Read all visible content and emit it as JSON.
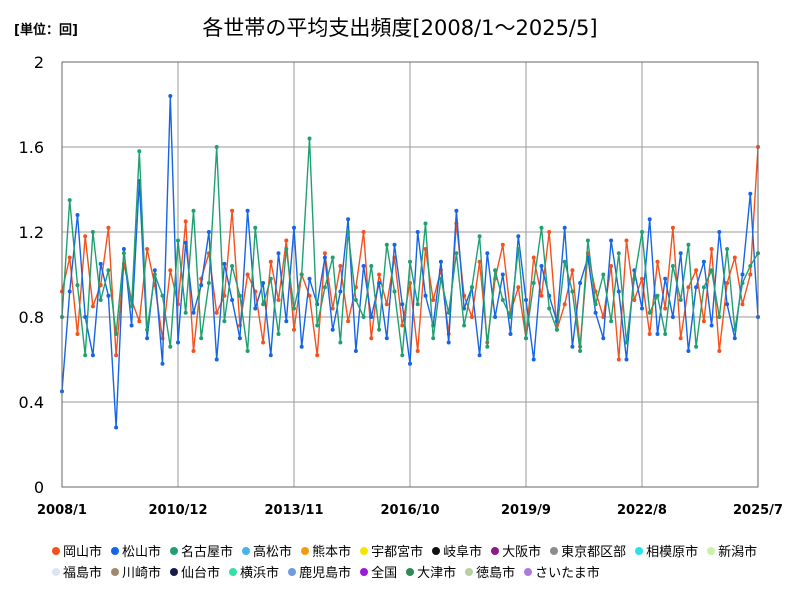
{
  "unit_label": "[単位：回]",
  "chart_data": {
    "type": "line",
    "title": "各世帯の平均支出頻度[2008/1～2025/5]",
    "xlabel": "",
    "ylabel": "",
    "ylim": [
      0,
      2
    ],
    "yticks": [
      "0",
      "0.4",
      "0.8",
      "1.2",
      "1.6",
      "2"
    ],
    "xticks": [
      "2008/1",
      "2010/12",
      "2013/11",
      "2016/10",
      "2019/9",
      "2022/8",
      "2025/7"
    ],
    "grid": true,
    "legend_position": "bottom",
    "series": [
      {
        "name": "岡山市",
        "color": "#f4511e",
        "values": [
          0.92,
          1.08,
          0.72,
          1.18,
          0.85,
          0.95,
          1.22,
          0.62,
          1.05,
          0.88,
          0.78,
          1.12,
          0.95,
          0.7,
          1.02,
          0.86,
          1.25,
          0.64,
          0.98,
          1.1,
          0.82,
          0.9,
          1.3,
          0.76,
          1.0,
          0.92,
          0.68,
          1.06,
          0.88,
          1.16,
          0.74,
          1.0,
          0.9,
          0.62,
          1.1,
          0.84,
          1.04,
          0.78,
          0.94,
          1.2,
          0.7,
          1.0,
          0.86,
          1.08,
          0.76,
          0.96,
          0.64,
          1.12,
          0.88,
          1.02,
          0.72,
          1.24,
          0.9,
          0.8,
          1.06,
          0.68,
          0.98,
          1.14,
          0.82,
          0.94,
          0.7,
          1.08,
          0.9,
          1.2,
          0.74,
          0.86,
          1.02,
          0.66,
          1.1,
          0.92,
          0.8,
          1.04,
          0.6,
          1.16,
          0.88,
          0.98,
          0.72,
          1.06,
          0.84,
          1.22,
          0.7,
          0.94,
          1.02,
          0.78,
          1.12,
          0.64,
          0.96,
          1.08,
          0.86,
          1.0,
          1.6
        ]
      },
      {
        "name": "松山市",
        "color": "#1565e6",
        "values": [
          0.45,
          0.92,
          1.28,
          0.8,
          0.62,
          1.05,
          0.9,
          0.28,
          1.12,
          0.76,
          1.44,
          0.7,
          1.02,
          0.58,
          1.84,
          0.68,
          1.15,
          0.82,
          0.95,
          1.2,
          0.6,
          1.05,
          0.88,
          0.7,
          1.3,
          0.84,
          0.96,
          0.62,
          1.1,
          0.78,
          1.22,
          0.66,
          0.98,
          0.86,
          1.08,
          0.74,
          0.92,
          1.26,
          0.64,
          1.04,
          0.8,
          0.96,
          0.7,
          1.14,
          0.86,
          0.58,
          1.2,
          0.9,
          0.76,
          1.06,
          0.68,
          1.3,
          0.84,
          0.94,
          0.62,
          1.1,
          0.8,
          1.0,
          0.72,
          1.18,
          0.88,
          0.6,
          1.04,
          0.9,
          0.78,
          1.22,
          0.66,
          0.96,
          1.08,
          0.82,
          0.7,
          1.16,
          0.92,
          0.6,
          1.02,
          0.84,
          1.26,
          0.72,
          0.98,
          0.8,
          1.1,
          0.64,
          0.94,
          1.06,
          0.76,
          1.2,
          0.86,
          0.7,
          1.0,
          1.38,
          0.8
        ]
      },
      {
        "name": "名古屋市",
        "color": "#20a070",
        "values": [
          0.8,
          1.35,
          0.95,
          0.62,
          1.2,
          0.88,
          1.02,
          0.72,
          1.1,
          0.85,
          1.58,
          0.74,
          1.0,
          0.9,
          0.66,
          1.16,
          0.82,
          1.3,
          0.7,
          0.96,
          1.6,
          0.78,
          1.04,
          0.9,
          0.64,
          1.22,
          0.86,
          0.98,
          0.72,
          1.12,
          0.84,
          1.0,
          1.64,
          0.76,
          0.94,
          1.08,
          0.68,
          1.2,
          0.88,
          0.8,
          1.04,
          0.74,
          1.14,
          0.92,
          0.62,
          1.06,
          0.86,
          1.24,
          0.7,
          0.98,
          0.82,
          1.1,
          0.76,
          0.94,
          1.18,
          0.66,
          1.02,
          0.88,
          0.8,
          1.12,
          0.7,
          0.96,
          1.22,
          0.84,
          0.74,
          1.06,
          0.92,
          0.64,
          1.16,
          0.86,
          1.0,
          0.78,
          1.1,
          0.68,
          0.98,
          1.2,
          0.82,
          0.9,
          0.72,
          1.04,
          0.88,
          1.14,
          0.66,
          0.94,
          1.02,
          0.8,
          1.12,
          0.74,
          0.96,
          1.04,
          1.1
        ]
      }
    ],
    "extra_legend": [
      {
        "name": "高松市",
        "color": "#45b4ea"
      },
      {
        "name": "熊本市",
        "color": "#f29a13"
      },
      {
        "name": "宇都宮市",
        "color": "#f5e400"
      },
      {
        "name": "岐阜市",
        "color": "#111111"
      },
      {
        "name": "大阪市",
        "color": "#8b1a8e"
      },
      {
        "name": "東京都区部",
        "color": "#8c8c8c"
      },
      {
        "name": "相模原市",
        "color": "#28e0f0"
      },
      {
        "name": "新潟市",
        "color": "#ccf0a8"
      },
      {
        "name": "福島市",
        "color": "#dde4f4"
      },
      {
        "name": "川崎市",
        "color": "#9e8a70"
      },
      {
        "name": "仙台市",
        "color": "#1a1a4e"
      },
      {
        "name": "横浜市",
        "color": "#35e0a8"
      },
      {
        "name": "鹿児島市",
        "color": "#6f9be0"
      },
      {
        "name": "全国",
        "color": "#9a1ad8"
      },
      {
        "name": "大津市",
        "color": "#2e8b57"
      },
      {
        "name": "徳島市",
        "color": "#b8cfa0"
      },
      {
        "name": "さいたま市",
        "color": "#b07ad8"
      }
    ]
  }
}
